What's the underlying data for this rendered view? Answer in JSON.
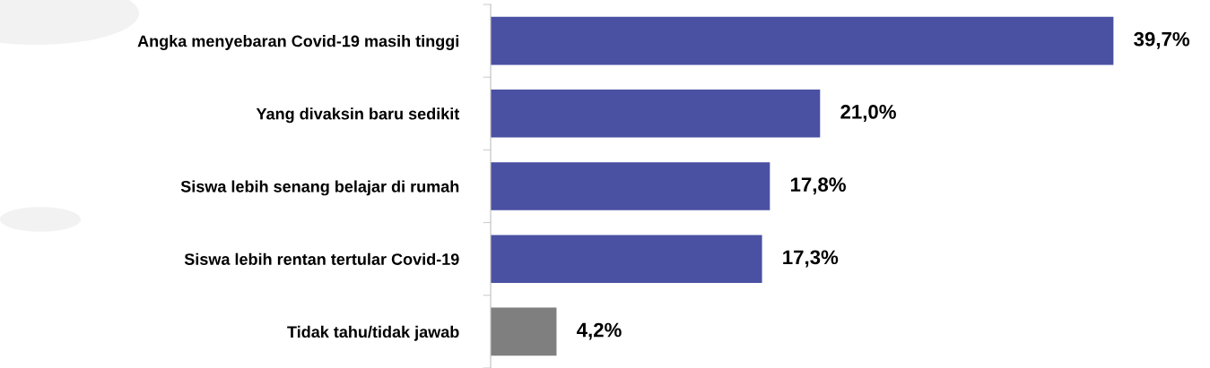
{
  "chart_data": {
    "type": "bar",
    "orientation": "horizontal",
    "categories": [
      "Angka menyebaran Covid-19 masih tinggi",
      "Yang divaksin baru sedikit",
      "Siswa lebih senang belajar di rumah",
      "Siswa lebih rentan tertular Covid-19",
      "Tidak tahu/tidak jawab"
    ],
    "values": [
      39.7,
      21.0,
      17.8,
      17.3,
      4.2
    ],
    "colors": [
      "#4a51a3",
      "#4a51a3",
      "#4a51a3",
      "#4a51a3",
      "#7f7f7f"
    ],
    "value_labels": [
      "39,7%",
      "21,0%",
      "17,8%",
      "17,3%",
      "4,2%"
    ],
    "grid": false,
    "legend": false
  }
}
